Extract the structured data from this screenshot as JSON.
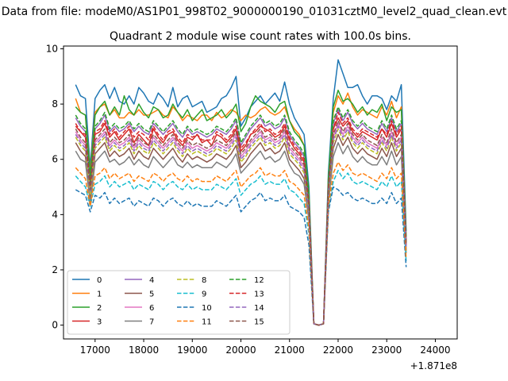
{
  "chart_data": {
    "type": "line",
    "suptitle": "Data from file: modeM0/AS1P01_998T02_9000000190_01031cztM0_level2_quad_clean.evt",
    "title": "Quadrant 2 module wise count rates with 100.0s bins.",
    "xlabel": "",
    "ylabel": "",
    "x_offset_label": "+1.871e8",
    "xlim": [
      16350,
      24450
    ],
    "ylim": [
      -0.5,
      10.1
    ],
    "x_ticks": [
      17000,
      18000,
      19000,
      20000,
      21000,
      22000,
      23000,
      24000
    ],
    "x_tick_labels": [
      "17000",
      "18000",
      "19000",
      "20000",
      "21000",
      "22000",
      "23000",
      "24000"
    ],
    "y_ticks": [
      0,
      2,
      4,
      6,
      8,
      10
    ],
    "y_tick_labels": [
      "0",
      "2",
      "4",
      "6",
      "8",
      "10"
    ],
    "grid": false,
    "legend_position": "lower-left",
    "legend_columns": 4,
    "x_start": 16600,
    "x_step": 100,
    "series": [
      {
        "name": "0",
        "color": "#1f77b4",
        "dash": "solid",
        "values": [
          8.7,
          8.3,
          8.2,
          5.7,
          8.2,
          8.5,
          8.7,
          8.2,
          8.6,
          8.1,
          8.0,
          8.3,
          8.0,
          8.6,
          8.4,
          8.1,
          8.0,
          8.4,
          8.2,
          7.9,
          8.6,
          7.9,
          8.2,
          8.3,
          7.9,
          8.0,
          8.1,
          7.7,
          7.8,
          7.9,
          8.2,
          8.3,
          8.6,
          9.0,
          7.2,
          7.5,
          7.9,
          8.1,
          8.3,
          8.0,
          8.2,
          8.4,
          8.1,
          8.8,
          8.0,
          7.5,
          7.2,
          6.9,
          5.0,
          0.05,
          0.0,
          0.05,
          5.5,
          8.2,
          9.6,
          9.1,
          8.6,
          8.6,
          8.7,
          8.3,
          8.0,
          8.3,
          8.3,
          8.2,
          7.8,
          8.3,
          8.1,
          8.7,
          3.4
        ]
      },
      {
        "name": "1",
        "color": "#ff7f0e",
        "dash": "solid",
        "values": [
          8.2,
          7.7,
          7.6,
          5.5,
          7.7,
          7.9,
          8.0,
          7.6,
          7.8,
          7.5,
          7.5,
          7.7,
          7.6,
          7.8,
          7.6,
          7.6,
          7.7,
          7.8,
          7.6,
          7.5,
          7.9,
          7.7,
          7.4,
          7.6,
          7.5,
          7.4,
          7.6,
          7.6,
          7.4,
          7.7,
          7.5,
          7.6,
          7.8,
          7.7,
          7.4,
          7.6,
          7.5,
          7.6,
          7.8,
          7.9,
          7.7,
          7.6,
          7.7,
          7.9,
          7.4,
          7.1,
          6.9,
          6.5,
          4.7,
          0.05,
          0.0,
          0.05,
          5.2,
          7.7,
          8.3,
          8.0,
          8.4,
          7.9,
          7.6,
          7.8,
          7.7,
          7.6,
          7.5,
          7.9,
          7.6,
          8.1,
          7.5,
          7.9,
          3.1
        ]
      },
      {
        "name": "2",
        "color": "#2ca02c",
        "dash": "solid",
        "values": [
          7.9,
          7.7,
          7.6,
          5.4,
          7.6,
          7.9,
          8.1,
          7.6,
          7.9,
          7.6,
          8.3,
          7.8,
          7.6,
          8.0,
          7.7,
          7.5,
          7.9,
          7.8,
          7.5,
          7.6,
          8.0,
          7.7,
          7.5,
          7.8,
          7.4,
          7.6,
          7.8,
          7.4,
          7.5,
          7.6,
          7.8,
          7.5,
          7.7,
          8.0,
          7.0,
          7.3,
          7.9,
          8.3,
          8.1,
          8.0,
          7.9,
          7.7,
          8.0,
          8.1,
          7.4,
          7.0,
          6.8,
          6.5,
          4.8,
          0.05,
          0.0,
          0.05,
          5.3,
          7.9,
          8.5,
          8.1,
          8.2,
          8.0,
          7.7,
          7.9,
          7.6,
          7.8,
          7.7,
          8.0,
          7.4,
          7.9,
          7.7,
          7.8,
          3.2
        ]
      },
      {
        "name": "3",
        "color": "#d62728",
        "dash": "solid",
        "values": [
          7.2,
          7.0,
          6.8,
          4.9,
          6.9,
          7.0,
          7.3,
          6.8,
          7.0,
          6.7,
          6.9,
          7.1,
          6.6,
          6.9,
          6.7,
          6.5,
          7.1,
          6.8,
          6.6,
          6.9,
          7.0,
          6.7,
          6.5,
          6.8,
          6.7,
          6.9,
          6.6,
          6.7,
          6.5,
          6.9,
          6.8,
          6.6,
          6.8,
          7.1,
          6.3,
          6.5,
          6.9,
          7.0,
          7.2,
          7.1,
          7.0,
          6.8,
          6.9,
          7.2,
          6.7,
          6.4,
          6.2,
          5.9,
          4.3,
          0.05,
          0.0,
          0.05,
          4.9,
          7.1,
          7.5,
          7.2,
          7.4,
          7.0,
          6.8,
          7.0,
          6.9,
          6.8,
          6.7,
          7.1,
          6.8,
          7.3,
          6.8,
          7.1,
          2.9
        ]
      },
      {
        "name": "4",
        "color": "#9467bd",
        "dash": "solid",
        "values": [
          7.5,
          7.2,
          7.0,
          5.1,
          7.1,
          7.3,
          7.6,
          7.0,
          7.2,
          7.0,
          7.1,
          7.3,
          7.0,
          7.2,
          7.0,
          6.9,
          7.3,
          7.1,
          6.9,
          7.1,
          7.3,
          7.0,
          6.8,
          7.1,
          6.9,
          7.0,
          6.9,
          6.8,
          6.9,
          7.1,
          7.0,
          6.9,
          7.1,
          7.4,
          6.5,
          6.8,
          7.1,
          7.3,
          7.5,
          7.2,
          7.3,
          7.1,
          7.2,
          7.5,
          6.9,
          6.6,
          6.4,
          6.1,
          4.5,
          0.05,
          0.0,
          0.05,
          5.0,
          7.3,
          7.8,
          7.4,
          7.7,
          7.3,
          7.1,
          7.3,
          7.1,
          7.0,
          6.9,
          7.3,
          7.0,
          7.5,
          7.0,
          7.3,
          3.0
        ]
      },
      {
        "name": "5",
        "color": "#8c564b",
        "dash": "solid",
        "values": [
          6.6,
          6.3,
          6.1,
          4.6,
          6.2,
          6.4,
          6.6,
          6.1,
          6.3,
          6.1,
          6.2,
          6.4,
          6.0,
          6.3,
          6.1,
          6.0,
          6.4,
          6.2,
          6.0,
          6.2,
          6.4,
          6.1,
          5.9,
          6.2,
          6.0,
          6.1,
          6.0,
          5.9,
          6.0,
          6.2,
          6.1,
          6.0,
          6.2,
          6.5,
          5.7,
          5.9,
          6.2,
          6.4,
          6.6,
          6.3,
          6.4,
          6.2,
          6.3,
          6.6,
          6.0,
          5.8,
          5.6,
          5.3,
          4.0,
          0.05,
          0.0,
          0.05,
          4.6,
          6.4,
          6.9,
          6.5,
          6.8,
          6.4,
          6.2,
          6.4,
          6.2,
          6.1,
          6.0,
          6.4,
          6.1,
          6.6,
          6.1,
          6.4,
          2.7
        ]
      },
      {
        "name": "6",
        "color": "#e377c2",
        "dash": "solid",
        "values": [
          7.0,
          6.7,
          6.5,
          4.8,
          6.6,
          6.8,
          7.0,
          6.5,
          6.7,
          6.5,
          6.6,
          6.8,
          6.4,
          6.7,
          6.5,
          6.4,
          6.8,
          6.6,
          6.4,
          6.6,
          6.8,
          6.5,
          6.3,
          6.6,
          6.4,
          6.5,
          6.4,
          6.3,
          6.4,
          6.6,
          6.5,
          6.4,
          6.6,
          6.9,
          6.1,
          6.3,
          6.6,
          6.8,
          7.0,
          6.7,
          6.8,
          6.6,
          6.7,
          7.0,
          6.4,
          6.2,
          6.0,
          5.7,
          4.2,
          0.05,
          0.0,
          0.05,
          4.8,
          6.8,
          7.3,
          6.9,
          7.2,
          6.8,
          6.6,
          6.8,
          6.6,
          6.5,
          6.4,
          6.8,
          6.5,
          7.0,
          6.5,
          6.8,
          2.8
        ]
      },
      {
        "name": "7",
        "color": "#7f7f7f",
        "dash": "solid",
        "values": [
          6.3,
          6.0,
          5.9,
          4.4,
          5.9,
          6.1,
          6.3,
          5.9,
          6.0,
          5.8,
          5.9,
          6.1,
          5.8,
          6.0,
          5.8,
          5.7,
          6.1,
          5.9,
          5.7,
          5.9,
          6.1,
          5.8,
          5.7,
          5.9,
          5.7,
          5.8,
          5.7,
          5.7,
          5.7,
          5.9,
          5.8,
          5.7,
          5.9,
          6.2,
          5.5,
          5.7,
          5.9,
          6.1,
          6.3,
          6.0,
          6.1,
          5.9,
          6.0,
          6.3,
          5.8,
          5.5,
          5.4,
          5.1,
          3.8,
          0.05,
          0.0,
          0.05,
          4.4,
          6.1,
          6.6,
          6.2,
          6.5,
          6.1,
          5.9,
          6.1,
          5.9,
          5.8,
          5.8,
          6.1,
          5.8,
          6.3,
          5.8,
          6.1,
          2.6
        ]
      },
      {
        "name": "8",
        "color": "#bcbd22",
        "dash": "dashed",
        "values": [
          6.8,
          6.5,
          6.3,
          4.7,
          6.4,
          6.6,
          6.8,
          6.3,
          6.5,
          6.3,
          6.4,
          6.6,
          6.2,
          6.5,
          6.3,
          6.2,
          6.6,
          6.4,
          6.2,
          6.4,
          6.6,
          6.3,
          6.1,
          6.4,
          6.2,
          6.3,
          6.2,
          6.1,
          6.2,
          6.4,
          6.3,
          6.2,
          6.4,
          6.7,
          5.9,
          6.1,
          6.4,
          6.6,
          6.8,
          6.5,
          6.6,
          6.4,
          6.5,
          6.8,
          6.2,
          6.0,
          5.8,
          5.5,
          4.1,
          0.05,
          0.0,
          0.05,
          4.7,
          6.6,
          7.1,
          6.7,
          7.0,
          6.6,
          6.4,
          6.6,
          6.4,
          6.3,
          6.2,
          6.6,
          6.3,
          6.8,
          6.3,
          6.6,
          2.7
        ]
      },
      {
        "name": "9",
        "color": "#17becf",
        "dash": "dashed",
        "values": [
          5.4,
          5.2,
          5.0,
          4.3,
          5.1,
          5.2,
          5.4,
          5.0,
          5.2,
          5.0,
          5.1,
          5.2,
          4.9,
          5.1,
          5.0,
          4.9,
          5.2,
          5.1,
          4.9,
          5.1,
          5.2,
          5.0,
          4.9,
          5.1,
          4.9,
          5.0,
          4.9,
          4.9,
          4.9,
          5.1,
          5.0,
          4.9,
          5.1,
          5.3,
          4.7,
          4.9,
          5.1,
          5.2,
          5.4,
          5.1,
          5.2,
          5.1,
          5.1,
          5.3,
          4.9,
          4.8,
          4.6,
          4.4,
          3.3,
          0.05,
          0.0,
          0.05,
          4.2,
          5.2,
          5.6,
          5.3,
          5.5,
          5.2,
          5.1,
          5.2,
          5.1,
          5.0,
          4.9,
          5.2,
          5.0,
          5.4,
          5.0,
          5.2,
          2.3
        ]
      },
      {
        "name": "10",
        "color": "#1f77b4",
        "dash": "dashed",
        "values": [
          4.9,
          4.8,
          4.7,
          4.1,
          4.7,
          4.6,
          4.8,
          4.4,
          4.6,
          4.4,
          4.5,
          4.6,
          4.3,
          4.5,
          4.4,
          4.3,
          4.6,
          4.5,
          4.3,
          4.5,
          4.6,
          4.4,
          4.3,
          4.5,
          4.3,
          4.4,
          4.3,
          4.3,
          4.3,
          4.5,
          4.4,
          4.3,
          4.5,
          4.7,
          4.1,
          4.3,
          4.5,
          4.6,
          4.8,
          4.5,
          4.6,
          4.5,
          4.5,
          4.7,
          4.3,
          4.2,
          4.1,
          3.9,
          2.9,
          0.05,
          0.0,
          0.05,
          4.1,
          5.0,
          4.9,
          4.7,
          4.8,
          4.6,
          4.5,
          4.6,
          4.5,
          4.4,
          4.4,
          4.6,
          4.4,
          4.8,
          4.4,
          4.6,
          2.1
        ]
      },
      {
        "name": "11",
        "color": "#ff7f0e",
        "dash": "dashed",
        "values": [
          5.7,
          5.5,
          5.3,
          4.3,
          5.4,
          5.5,
          5.7,
          5.3,
          5.5,
          5.3,
          5.4,
          5.5,
          5.2,
          5.4,
          5.3,
          5.2,
          5.5,
          5.4,
          5.2,
          5.4,
          5.5,
          5.3,
          5.2,
          5.4,
          5.2,
          5.3,
          5.2,
          5.2,
          5.2,
          5.4,
          5.3,
          5.2,
          5.4,
          5.6,
          5.0,
          5.2,
          5.4,
          5.5,
          5.7,
          5.4,
          5.5,
          5.4,
          5.4,
          5.6,
          5.2,
          5.1,
          4.9,
          4.7,
          3.5,
          0.05,
          0.0,
          0.05,
          4.3,
          5.5,
          5.9,
          5.6,
          5.8,
          5.5,
          5.4,
          5.5,
          5.4,
          5.3,
          5.2,
          5.5,
          5.3,
          5.7,
          5.3,
          5.5,
          2.4
        ]
      },
      {
        "name": "12",
        "color": "#2ca02c",
        "dash": "dashed",
        "values": [
          7.6,
          7.3,
          7.1,
          5.2,
          7.2,
          7.4,
          7.7,
          7.1,
          7.3,
          7.1,
          7.2,
          7.4,
          7.1,
          7.3,
          7.1,
          7.0,
          7.4,
          7.2,
          7.0,
          7.2,
          7.4,
          7.1,
          6.9,
          7.2,
          7.0,
          7.1,
          7.0,
          6.9,
          7.0,
          7.2,
          7.1,
          7.0,
          7.2,
          7.5,
          6.6,
          6.9,
          7.2,
          7.4,
          7.6,
          7.3,
          7.4,
          7.2,
          7.3,
          7.6,
          7.0,
          6.7,
          6.5,
          6.2,
          4.5,
          0.05,
          0.0,
          0.05,
          5.1,
          7.4,
          7.9,
          7.5,
          7.8,
          7.4,
          7.2,
          7.4,
          7.2,
          7.1,
          7.0,
          7.4,
          7.1,
          7.6,
          7.1,
          7.4,
          3.0
        ]
      },
      {
        "name": "13",
        "color": "#d62728",
        "dash": "dashed",
        "values": [
          7.3,
          7.0,
          6.9,
          5.0,
          7.0,
          7.1,
          7.4,
          6.9,
          7.1,
          6.8,
          7.0,
          7.2,
          6.8,
          7.0,
          6.9,
          6.7,
          7.2,
          6.9,
          6.7,
          7.0,
          7.1,
          6.8,
          6.6,
          6.9,
          6.8,
          6.9,
          6.7,
          6.7,
          6.7,
          7.0,
          6.9,
          6.7,
          6.9,
          7.2,
          6.4,
          6.6,
          6.9,
          7.1,
          7.3,
          7.0,
          7.1,
          6.9,
          7.0,
          7.3,
          6.8,
          6.5,
          6.3,
          6.0,
          4.4,
          0.05,
          0.0,
          0.05,
          5.0,
          7.1,
          7.7,
          7.3,
          7.5,
          7.1,
          6.9,
          7.1,
          7.0,
          6.9,
          6.8,
          7.1,
          6.9,
          7.4,
          6.9,
          7.2,
          2.9
        ]
      },
      {
        "name": "14",
        "color": "#9467bd",
        "dash": "dashed",
        "values": [
          6.9,
          6.6,
          6.4,
          4.8,
          6.5,
          6.7,
          6.9,
          6.4,
          6.6,
          6.4,
          6.5,
          6.7,
          6.3,
          6.6,
          6.4,
          6.3,
          6.7,
          6.5,
          6.3,
          6.5,
          6.7,
          6.4,
          6.2,
          6.5,
          6.3,
          6.4,
          6.3,
          6.2,
          6.3,
          6.5,
          6.4,
          6.3,
          6.5,
          6.8,
          6.0,
          6.2,
          6.5,
          6.7,
          6.9,
          6.6,
          6.7,
          6.5,
          6.6,
          6.9,
          6.3,
          6.1,
          5.9,
          5.6,
          4.1,
          0.05,
          0.0,
          0.05,
          4.8,
          6.7,
          7.2,
          6.8,
          7.1,
          6.7,
          6.5,
          6.7,
          6.5,
          6.4,
          6.3,
          6.7,
          6.4,
          6.9,
          6.4,
          6.7,
          2.8
        ]
      },
      {
        "name": "15",
        "color": "#8c564b",
        "dash": "dashed",
        "values": [
          7.1,
          6.8,
          6.6,
          4.9,
          6.7,
          6.9,
          7.1,
          6.6,
          6.8,
          6.6,
          6.7,
          6.9,
          6.5,
          6.8,
          6.6,
          6.5,
          6.9,
          6.7,
          6.5,
          6.7,
          6.9,
          6.6,
          6.4,
          6.7,
          6.5,
          6.6,
          6.5,
          6.4,
          6.5,
          6.7,
          6.6,
          6.5,
          6.7,
          7.0,
          6.2,
          6.4,
          6.7,
          6.9,
          7.1,
          6.8,
          6.9,
          6.7,
          6.8,
          7.1,
          6.5,
          6.3,
          6.1,
          5.8,
          4.3,
          0.05,
          0.0,
          0.05,
          4.9,
          6.9,
          7.4,
          7.0,
          7.3,
          6.9,
          6.7,
          6.9,
          6.7,
          6.6,
          6.5,
          6.9,
          6.6,
          7.1,
          6.6,
          6.9,
          2.9
        ]
      }
    ]
  }
}
